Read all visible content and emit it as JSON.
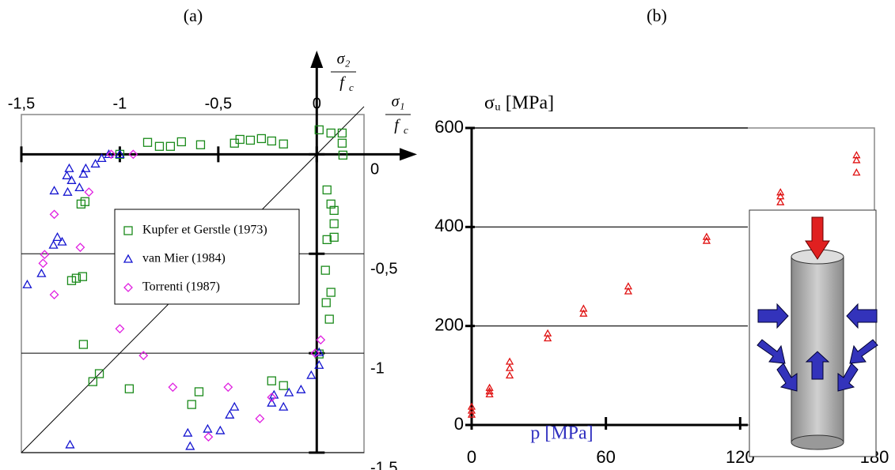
{
  "chart_data": [
    {
      "type": "scatter",
      "title": "(a)",
      "xlabel": {
        "numerator": "σ₁",
        "denominator": "f",
        "denominator_subscript": "c"
      },
      "ylabel": {
        "numerator": "σ₂",
        "denominator": "f",
        "denominator_subscript": "c"
      },
      "xlim": [
        -1.5,
        0.24
      ],
      "ylim": [
        -1.5,
        0.2
      ],
      "xticks": [
        {
          "value": -1.5,
          "label": "-1,5"
        },
        -1,
        {
          "value": -0.5,
          "label": "-0,5"
        },
        0
      ],
      "yticks": [
        0,
        {
          "value": -0.5,
          "label": "-0,5"
        },
        -1,
        {
          "value": -1.5,
          "label": "-1,5"
        }
      ],
      "grid": true,
      "diagonal": true,
      "legend": "center",
      "series": [
        {
          "name": "Kupfer et Gerstle (1973)",
          "color": "#1a8a1a",
          "marker": "square",
          "x": [
            -0.859,
            -0.799,
            -0.743,
            -0.687,
            -0.59,
            -0.418,
            -0.39,
            -0.337,
            -0.281,
            -0.229,
            -0.169,
            0.012,
            0.072,
            0.129,
            0.129,
            0.133,
            -1.0,
            0.052,
            0.072,
            0.088,
            0.088,
            0.088,
            0.052,
            0.044,
            0.072,
            0.048,
            0.064,
            0.012,
            -1.177,
            -1.197,
            -1.189,
            -1.221,
            -1.245,
            -1.185,
            -1.104,
            -1.137,
            -0.952,
            -0.598,
            -0.635,
            -0.229,
            -0.169
          ],
          "values": [
            0.06,
            0.04,
            0.04,
            0.063,
            0.048,
            0.056,
            0.075,
            0.071,
            0.079,
            0.067,
            0.052,
            0.123,
            0.107,
            0.107,
            0.056,
            -0.004,
            0,
            -0.179,
            -0.25,
            -0.282,
            -0.349,
            -0.417,
            -0.429,
            -0.583,
            -0.694,
            -0.746,
            -0.829,
            -1.004,
            -0.238,
            -0.25,
            -0.615,
            -0.623,
            -0.635,
            -0.956,
            -1.103,
            -1.143,
            -1.179,
            -1.194,
            -1.258,
            -1.139,
            -1.163
          ]
        },
        {
          "name": "van Mier (1984)",
          "color": "#1515d0",
          "marker": "triangle",
          "x": [
            -1.0,
            -1.056,
            -1.092,
            -1.124,
            -1.173,
            -1.185,
            -1.257,
            -1.269,
            -1.245,
            -1.333,
            -1.265,
            -1.205,
            -1.317,
            -1.293,
            -1.337,
            -1.398,
            -1.47,
            -1.253,
            -0.643,
            -0.655,
            -0.554,
            -0.49,
            -0.442,
            -0.418,
            -0.229,
            -0.169,
            -0.141,
            -0.08,
            -0.028,
            0.012,
            0.012,
            -0.217
          ],
          "values": [
            0,
            0,
            -0.02,
            -0.048,
            -0.071,
            -0.099,
            -0.071,
            -0.107,
            -0.131,
            -0.183,
            -0.19,
            -0.167,
            -0.417,
            -0.44,
            -0.456,
            -0.599,
            -0.655,
            -1.46,
            -1.468,
            -1.401,
            -1.381,
            -1.389,
            -1.31,
            -1.27,
            -1.25,
            -1.27,
            -1.198,
            -1.183,
            -1.111,
            -1.06,
            -0.996,
            -1.21
          ]
        },
        {
          "name": "Torrenti (1987)",
          "color": "#e020e0",
          "marker": "diamond",
          "x": [
            -0.932,
            -1.044,
            -1.157,
            -1.333,
            -1.201,
            -1.382,
            -1.39,
            -1.333,
            -1.0,
            -0.88,
            -0.731,
            -0.45,
            -0.55,
            -0.289,
            -0.229,
            0.02,
            -0.008
          ],
          "values": [
            0,
            0,
            -0.19,
            -0.302,
            -0.468,
            -0.504,
            -0.548,
            -0.706,
            -0.877,
            -1.012,
            -1.171,
            -1.171,
            -1.421,
            -1.329,
            -1.222,
            -0.933,
            -1.0
          ]
        }
      ]
    },
    {
      "type": "scatter",
      "title": "(b)",
      "ylabel": "σᵤ [MPa]",
      "xlabel": "p [MPa]",
      "annotations": [
        "σᵤ",
        "p"
      ],
      "xlim": [
        0,
        180
      ],
      "ylim": [
        0,
        600
      ],
      "xticks": [
        0,
        60,
        120,
        180
      ],
      "yticks": [
        0,
        200,
        400,
        600
      ],
      "grid": true,
      "series": [
        {
          "color": "#e01010",
          "marker": "triangle",
          "x": [
            0,
            0,
            0,
            8,
            8,
            8,
            17,
            17,
            17,
            34,
            34,
            50,
            50,
            70,
            70,
            105,
            105,
            138,
            138,
            138,
            172,
            172,
            172
          ],
          "values": [
            37,
            29,
            21,
            75,
            68,
            62,
            128,
            115,
            100,
            185,
            175,
            235,
            225,
            280,
            270,
            380,
            372,
            470,
            462,
            450,
            545,
            535,
            510
          ]
        }
      ]
    }
  ]
}
